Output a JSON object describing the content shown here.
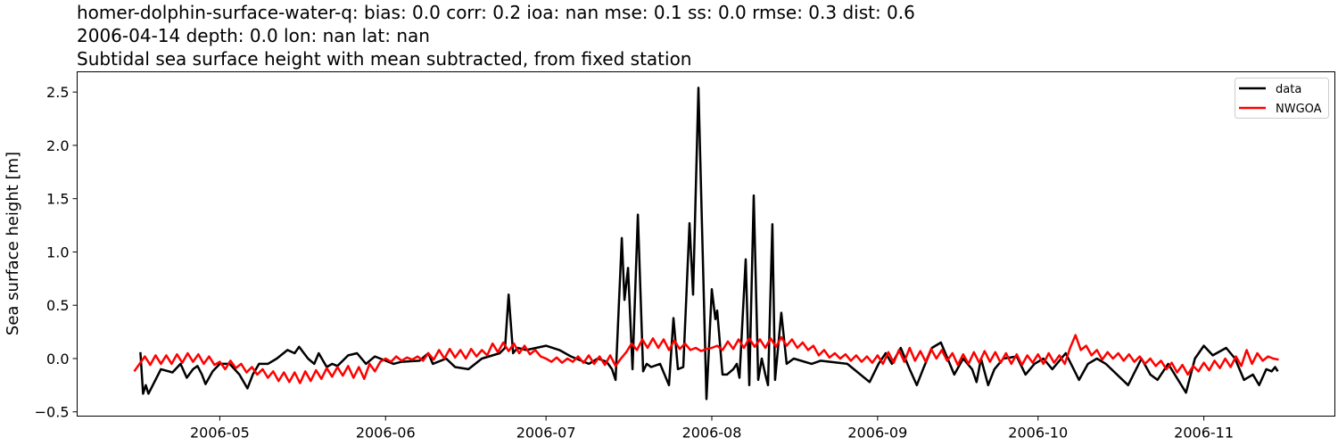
{
  "titles": [
    "homer-dolphin-surface-water-q: bias: 0.0  corr: 0.2  ioa: nan  mse: 0.1  ss: 0.0  rmse: 0.3  dist: 0.6",
    "2006-04-14 depth: 0.0 lon: nan lat: nan",
    "Subtidal sea surface height with mean subtracted, from fixed station"
  ],
  "chart_data": {
    "type": "line",
    "title": "homer-dolphin-surface-water-q: bias: 0.0  corr: 0.2  ioa: nan  mse: 0.1  ss: 0.0  rmse: 0.3  dist: 0.6",
    "xlabel": "",
    "ylabel": "Sea surface height [m]",
    "xlim": [
      "2006-04-04 08:00",
      "2006-11-25 12:00"
    ],
    "ylim": [
      -0.54,
      2.69
    ],
    "x_ticks": [
      "2006-05",
      "2006-06",
      "2006-07",
      "2006-08",
      "2006-09",
      "2006-10",
      "2006-11"
    ],
    "y_ticks": [
      -0.5,
      0.0,
      0.5,
      1.0,
      1.5,
      2.0,
      2.5
    ],
    "y_tick_labels": [
      "−0.5",
      "0.0",
      "0.5",
      "1.0",
      "1.5",
      "2.0",
      "2.5"
    ],
    "grid": false,
    "legend_placement": "top-right",
    "series": [
      {
        "name": "data",
        "color": "#000000",
        "points": [
          [
            "2006-04-16 04:00",
            0.06
          ],
          [
            "2006-04-16 16:00",
            -0.33
          ],
          [
            "2006-04-17 04:00",
            -0.25
          ],
          [
            "2006-04-17 16:00",
            -0.33
          ],
          [
            "2006-04-20 00:00",
            -0.1
          ],
          [
            "2006-04-22 04:00",
            -0.13
          ],
          [
            "2006-04-23 16:00",
            -0.05
          ],
          [
            "2006-04-24 20:00",
            -0.18
          ],
          [
            "2006-04-26 00:00",
            -0.1
          ],
          [
            "2006-04-26 20:00",
            -0.07
          ],
          [
            "2006-04-27 16:00",
            -0.15
          ],
          [
            "2006-04-28 08:00",
            -0.24
          ],
          [
            "2006-04-29 16:00",
            -0.12
          ],
          [
            "2006-05-01 00:00",
            -0.05
          ],
          [
            "2006-05-02 20:00",
            -0.05
          ],
          [
            "2006-05-04 16:00",
            -0.15
          ],
          [
            "2006-05-06 04:00",
            -0.28
          ],
          [
            "2006-05-07 04:00",
            -0.15
          ],
          [
            "2006-05-08 08:00",
            -0.05
          ],
          [
            "2006-05-10 00:00",
            -0.05
          ],
          [
            "2006-05-11 16:00",
            0.0
          ],
          [
            "2006-05-13 16:00",
            0.08
          ],
          [
            "2006-05-15 00:00",
            0.05
          ],
          [
            "2006-05-15 20:00",
            0.11
          ],
          [
            "2006-05-17 12:00",
            0.0
          ],
          [
            "2006-05-18 16:00",
            -0.05
          ],
          [
            "2006-05-19 12:00",
            0.05
          ],
          [
            "2006-05-21 00:00",
            -0.08
          ],
          [
            "2006-05-22 00:00",
            -0.05
          ],
          [
            "2006-05-23 00:00",
            -0.07
          ],
          [
            "2006-05-25 00:00",
            0.03
          ],
          [
            "2006-05-26 16:00",
            0.05
          ],
          [
            "2006-05-28 08:00",
            -0.05
          ],
          [
            "2006-05-30 00:00",
            0.02
          ],
          [
            "2006-06-01 00:00",
            -0.02
          ],
          [
            "2006-06-02 12:00",
            -0.05
          ],
          [
            "2006-06-04 00:00",
            -0.03
          ],
          [
            "2006-06-07 08:00",
            -0.02
          ],
          [
            "2006-06-09 00:00",
            0.05
          ],
          [
            "2006-06-09 20:00",
            -0.05
          ],
          [
            "2006-06-12 08:00",
            0.0
          ],
          [
            "2006-06-14 00:00",
            -0.08
          ],
          [
            "2006-06-16 12:00",
            -0.1
          ],
          [
            "2006-06-19 00:00",
            0.0
          ],
          [
            "2006-06-22 08:00",
            0.05
          ],
          [
            "2006-06-23 08:00",
            0.1
          ],
          [
            "2006-06-24 00:00",
            0.6
          ],
          [
            "2006-06-24 20:00",
            0.05
          ],
          [
            "2006-06-25 16:00",
            0.1
          ],
          [
            "2006-06-27 08:00",
            0.08
          ],
          [
            "2006-07-01 00:00",
            0.12
          ],
          [
            "2006-07-03 12:00",
            0.08
          ],
          [
            "2006-07-05 16:00",
            0.02
          ],
          [
            "2006-07-09 00:00",
            -0.05
          ],
          [
            "2006-07-10 16:00",
            0.0
          ],
          [
            "2006-07-12 08:00",
            -0.03
          ],
          [
            "2006-07-13 08:00",
            -0.1
          ],
          [
            "2006-07-14 00:00",
            -0.2
          ],
          [
            "2006-07-15 04:00",
            1.13
          ],
          [
            "2006-07-15 16:00",
            0.55
          ],
          [
            "2006-07-16 08:00",
            0.85
          ],
          [
            "2006-07-17 04:00",
            -0.1
          ],
          [
            "2006-07-18 04:00",
            1.35
          ],
          [
            "2006-07-19 04:00",
            -0.12
          ],
          [
            "2006-07-19 20:00",
            -0.05
          ],
          [
            "2006-07-20 16:00",
            -0.08
          ],
          [
            "2006-07-22 08:00",
            -0.05
          ],
          [
            "2006-07-24 00:00",
            -0.25
          ],
          [
            "2006-07-24 20:00",
            0.38
          ],
          [
            "2006-07-25 16:00",
            -0.1
          ],
          [
            "2006-07-26 16:00",
            -0.08
          ],
          [
            "2006-07-27 20:00",
            1.27
          ],
          [
            "2006-07-28 12:00",
            0.6
          ],
          [
            "2006-07-29 12:00",
            2.54
          ],
          [
            "2006-07-31 00:00",
            -0.38
          ],
          [
            "2006-08-01 00:00",
            0.65
          ],
          [
            "2006-08-01 16:00",
            0.37
          ],
          [
            "2006-08-02 00:00",
            0.45
          ],
          [
            "2006-08-03 00:00",
            -0.15
          ],
          [
            "2006-08-03 20:00",
            -0.15
          ],
          [
            "2006-08-05 00:00",
            -0.1
          ],
          [
            "2006-08-05 16:00",
            -0.05
          ],
          [
            "2006-08-06 04:00",
            -0.18
          ],
          [
            "2006-08-07 08:00",
            0.93
          ],
          [
            "2006-08-08 00:00",
            -0.25
          ],
          [
            "2006-08-08 20:00",
            1.53
          ],
          [
            "2006-08-09 16:00",
            -0.2
          ],
          [
            "2006-08-10 08:00",
            0.0
          ],
          [
            "2006-08-11 00:00",
            -0.15
          ],
          [
            "2006-08-11 12:00",
            -0.25
          ],
          [
            "2006-08-12 08:00",
            1.26
          ],
          [
            "2006-08-12 20:00",
            -0.2
          ],
          [
            "2006-08-14 00:00",
            0.43
          ],
          [
            "2006-08-15 00:00",
            -0.05
          ],
          [
            "2006-08-16 08:00",
            0.0
          ],
          [
            "2006-08-19 16:00",
            -0.05
          ],
          [
            "2006-08-21 08:00",
            -0.02
          ],
          [
            "2006-08-26 08:00",
            -0.05
          ],
          [
            "2006-08-30 12:00",
            -0.22
          ],
          [
            "2006-09-01 04:00",
            -0.05
          ],
          [
            "2006-09-02 12:00",
            0.05
          ],
          [
            "2006-09-03 16:00",
            -0.05
          ],
          [
            "2006-09-05 08:00",
            0.1
          ],
          [
            "2006-09-07 00:00",
            -0.1
          ],
          [
            "2006-09-08 08:00",
            -0.25
          ],
          [
            "2006-09-09 12:00",
            -0.1
          ],
          [
            "2006-09-11 04:00",
            0.1
          ],
          [
            "2006-09-12 20:00",
            0.15
          ],
          [
            "2006-09-13 16:00",
            0.05
          ],
          [
            "2006-09-15 08:00",
            -0.15
          ],
          [
            "2006-09-17 00:00",
            0.0
          ],
          [
            "2006-09-18 16:00",
            -0.1
          ],
          [
            "2006-09-19 12:00",
            -0.22
          ],
          [
            "2006-09-20 08:00",
            0.0
          ],
          [
            "2006-09-21 16:00",
            -0.25
          ],
          [
            "2006-09-22 20:00",
            -0.1
          ],
          [
            "2006-09-24 12:00",
            0.0
          ],
          [
            "2006-09-27 00:00",
            0.02
          ],
          [
            "2006-09-28 16:00",
            -0.15
          ],
          [
            "2006-09-30 08:00",
            -0.05
          ],
          [
            "2006-10-02 00:00",
            0.0
          ],
          [
            "2006-10-03 16:00",
            -0.1
          ],
          [
            "2006-10-06 04:00",
            0.05
          ],
          [
            "2006-10-08 16:00",
            -0.2
          ],
          [
            "2006-10-10 08:00",
            -0.05
          ],
          [
            "2006-10-12 00:00",
            0.0
          ],
          [
            "2006-10-13 16:00",
            -0.05
          ],
          [
            "2006-10-17 20:00",
            -0.25
          ],
          [
            "2006-10-20 08:00",
            0.0
          ],
          [
            "2006-10-22 00:00",
            -0.15
          ],
          [
            "2006-10-23 08:00",
            -0.2
          ],
          [
            "2006-10-25 08:00",
            -0.05
          ],
          [
            "2006-10-28 16:00",
            -0.32
          ],
          [
            "2006-10-30 08:00",
            0.0
          ],
          [
            "2006-11-01 00:00",
            0.12
          ],
          [
            "2006-11-02 16:00",
            0.03
          ],
          [
            "2006-11-05 04:00",
            0.1
          ],
          [
            "2006-11-06 20:00",
            0.0
          ],
          [
            "2006-11-08 12:00",
            -0.2
          ],
          [
            "2006-11-10 04:00",
            -0.15
          ],
          [
            "2006-11-11 08:00",
            -0.25
          ],
          [
            "2006-11-12 16:00",
            -0.1
          ],
          [
            "2006-11-13 16:00",
            -0.12
          ],
          [
            "2006-11-14 08:00",
            -0.08
          ],
          [
            "2006-11-14 20:00",
            -0.12
          ]
        ]
      },
      {
        "name": "NWGOA",
        "color": "#ff0000",
        "start": "2006-04-15",
        "frequency": "daily",
        "values": [
          -0.12,
          -0.05,
          0.02,
          -0.06,
          0.03,
          -0.05,
          0.03,
          -0.05,
          0.04,
          -0.04,
          0.05,
          -0.03,
          0.04,
          -0.05,
          0.02,
          -0.06,
          -0.03,
          -0.1,
          -0.02,
          -0.09,
          -0.05,
          -0.13,
          -0.08,
          -0.15,
          -0.1,
          -0.18,
          -0.12,
          -0.21,
          -0.13,
          -0.22,
          -0.13,
          -0.23,
          -0.12,
          -0.21,
          -0.11,
          -0.19,
          -0.09,
          -0.17,
          -0.08,
          -0.16,
          -0.07,
          -0.18,
          -0.08,
          -0.19,
          -0.05,
          -0.12,
          -0.03,
          0.0,
          -0.03,
          0.02,
          -0.02,
          0.01,
          -0.01,
          0.02,
          -0.02,
          0.05,
          -0.01,
          0.08,
          0.0,
          0.09,
          0.01,
          0.08,
          0.0,
          0.09,
          0.02,
          0.08,
          0.03,
          0.14,
          0.06,
          0.15,
          0.07,
          0.14,
          0.05,
          0.12,
          0.04,
          0.08,
          0.02,
          0.0,
          -0.03,
          0.01,
          -0.04,
          0.0,
          -0.03,
          0.02,
          -0.04,
          0.03,
          -0.05,
          0.02,
          -0.06,
          0.03,
          -0.07,
          0.0,
          0.06,
          0.14,
          0.08,
          0.18,
          0.1,
          0.19,
          0.1,
          0.18,
          0.08,
          0.17,
          0.09,
          0.14,
          0.08,
          0.1,
          0.07,
          0.09,
          0.1,
          0.12,
          0.08,
          0.16,
          0.09,
          0.18,
          0.1,
          0.19,
          0.11,
          0.18,
          0.1,
          0.19,
          0.11,
          0.2,
          0.12,
          0.18,
          0.1,
          0.15,
          0.08,
          0.12,
          0.03,
          0.08,
          0.01,
          0.05,
          0.0,
          0.04,
          -0.02,
          0.03,
          -0.03,
          0.02,
          -0.04,
          0.03,
          -0.05,
          0.06,
          -0.04,
          0.08,
          -0.03,
          0.1,
          -0.02,
          0.07,
          -0.03,
          0.09,
          0.0,
          0.08,
          -0.02,
          0.05,
          -0.06,
          0.04,
          -0.05,
          0.06,
          -0.04,
          0.07,
          -0.03,
          0.06,
          -0.04,
          0.05,
          -0.05,
          0.04,
          -0.06,
          0.03,
          -0.04,
          0.04,
          -0.05,
          0.05,
          -0.04,
          0.03,
          -0.05,
          0.1,
          0.22,
          0.08,
          0.12,
          0.03,
          0.08,
          -0.01,
          0.06,
          0.0,
          0.05,
          -0.02,
          0.04,
          -0.03,
          0.02,
          -0.05,
          0.0,
          -0.07,
          -0.02,
          -0.1,
          -0.04,
          -0.13,
          -0.06,
          -0.15,
          -0.07,
          -0.12,
          -0.04,
          -0.11,
          -0.02,
          -0.09,
          0.0,
          -0.08,
          0.02,
          -0.07,
          0.08,
          -0.05,
          0.05,
          -0.02,
          0.02,
          0.0,
          -0.01
        ]
      }
    ]
  }
}
